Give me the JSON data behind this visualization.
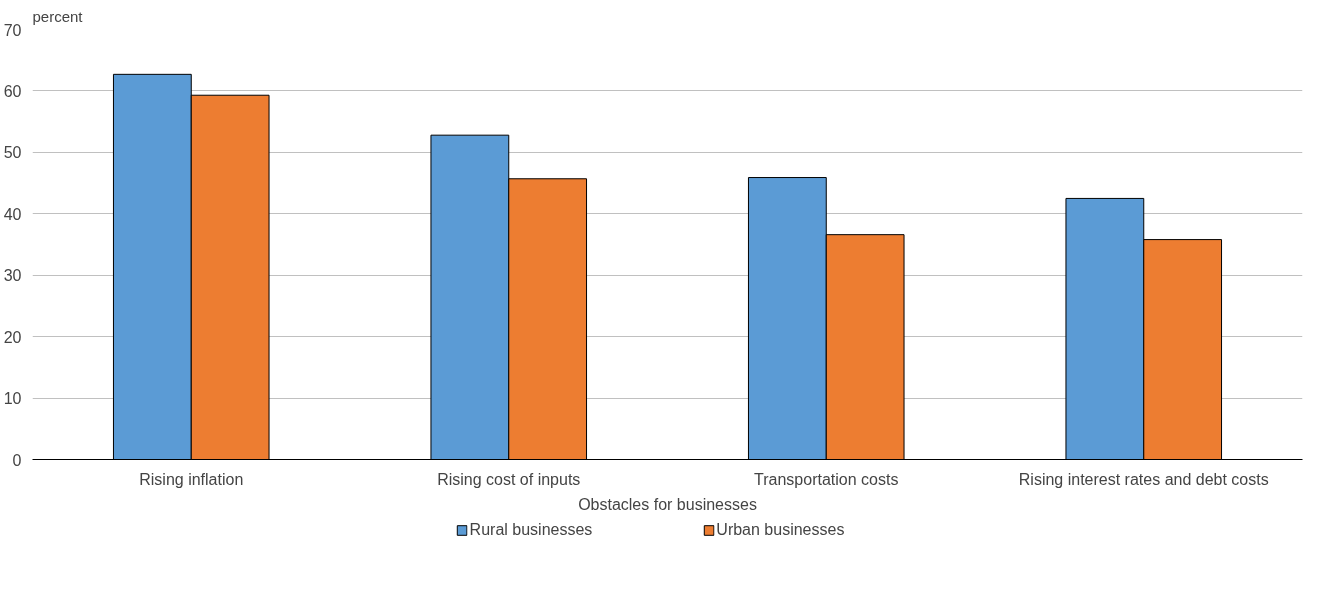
{
  "chart_data": {
    "type": "bar",
    "categories": [
      "Rising inflation",
      "Rising cost of inputs",
      "Transportation costs",
      "Rising interest rates and debt costs"
    ],
    "series": [
      {
        "name": "Rural businesses",
        "color": "#5b9bd5",
        "values": [
          62.7,
          52.8,
          45.9,
          42.5
        ]
      },
      {
        "name": "Urban businesses",
        "color": "#ed7d31",
        "values": [
          59.3,
          45.7,
          36.6,
          35.8
        ]
      }
    ],
    "xlabel": "Obstacles for businesses",
    "ylabel": "percent",
    "ylim": [
      0,
      70
    ],
    "yticks": [
      0,
      10,
      20,
      30,
      40,
      50,
      60,
      70
    ],
    "grid": "y",
    "legend": "bottom"
  }
}
